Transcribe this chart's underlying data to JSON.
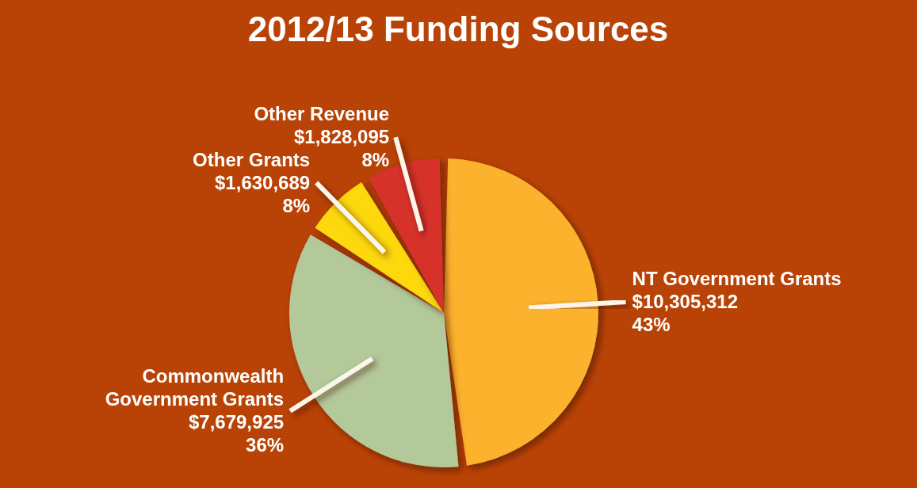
{
  "chart_data": {
    "type": "pie",
    "title": "2012/13 Funding Sources",
    "categories": [
      "NT Government Grants",
      "Commonwealth Government Grants",
      "Other Grants",
      "Other Revenue"
    ],
    "values": [
      10305312,
      7679925,
      1630689,
      1828095
    ],
    "value_labels": [
      "$10,305,312\n43%",
      "$7,679,925\n36%",
      "$1,630,689\n8%",
      "$1,828,095\n8%"
    ],
    "colors": [
      "#fdb22f",
      "#b3c99a",
      "#fcd80a",
      "#d6302a"
    ]
  }
}
